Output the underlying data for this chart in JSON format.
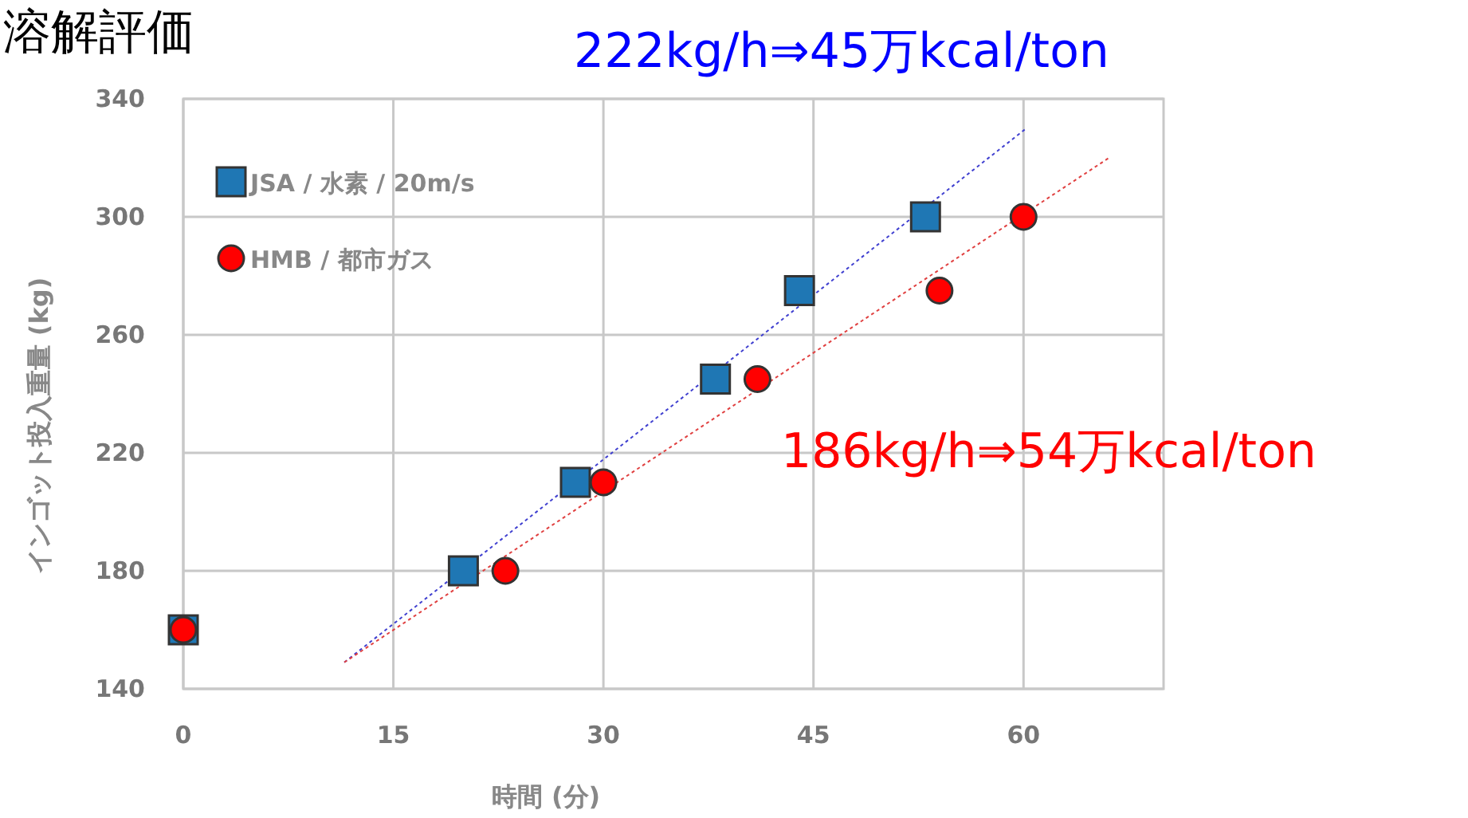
{
  "chart_data": {
    "type": "scatter",
    "title": "溶解評価",
    "xlabel": "時間 (分)",
    "ylabel": "インゴット投入重量 (kg)",
    "annotations": [
      "222kg/h⇒45万kcal/ton",
      "186kg/h⇒54万kcal/ton"
    ],
    "xlim": [
      0,
      70
    ],
    "xticks": [
      0,
      15,
      30,
      45,
      60
    ],
    "ylim": [
      140,
      340
    ],
    "yticks": [
      140,
      180,
      220,
      260,
      300,
      340
    ],
    "grid": true,
    "legend": "top left",
    "series": [
      {
        "name": "JSA / 水素 / 20m/s",
        "color": "#1f77b4",
        "marker": "square",
        "x": [
          0,
          20,
          28,
          38,
          44,
          53
        ],
        "values": [
          160,
          180,
          210,
          245,
          275,
          300
        ]
      },
      {
        "name": "HMB / 都市ガス",
        "color": "#ff0000",
        "marker": "circle",
        "x": [
          0,
          23,
          30,
          41,
          54,
          60
        ],
        "values": [
          160,
          180,
          210,
          245,
          275,
          300
        ]
      },
      {
        "type": "line",
        "color": "#4040d0",
        "line_style": "dotted",
        "marker": "none",
        "x": [
          11.5,
          60.2
        ],
        "values": [
          149,
          330
        ]
      },
      {
        "type": "line",
        "color": "#e04040",
        "line_style": "dotted",
        "marker": "none",
        "x": [
          11.5,
          66.1
        ],
        "values": [
          149,
          320
        ]
      }
    ]
  }
}
